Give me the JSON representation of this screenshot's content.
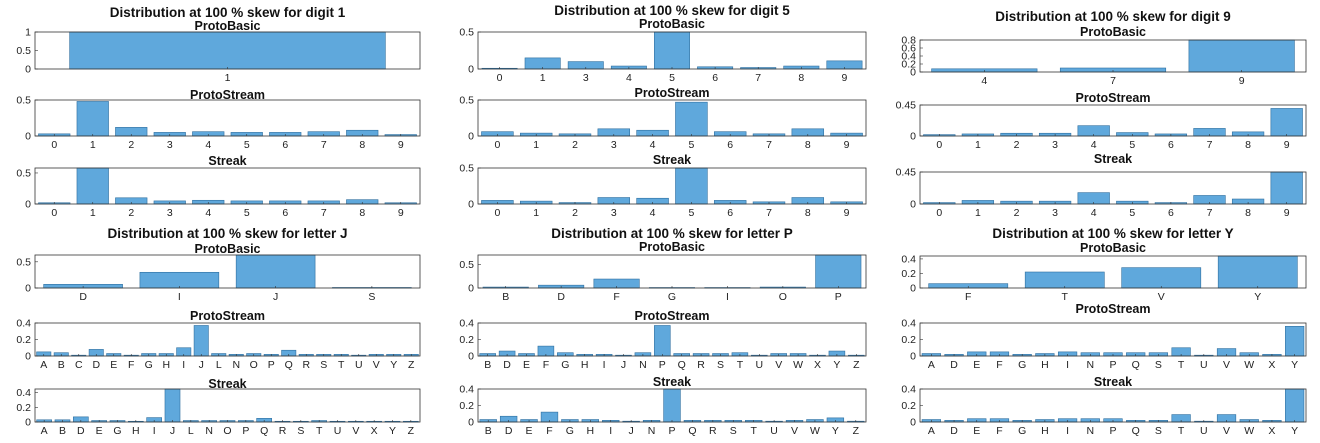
{
  "colors": {
    "bar": "#5fa8dc",
    "bar_edge": "#2f6f9f",
    "axis": "#333333"
  },
  "chart_data": [
    {
      "type": "bar",
      "group_title": "Distribution at 100 % skew for digit 1",
      "title": "ProtoBasic",
      "categories": [
        "1"
      ],
      "values": [
        1.0
      ],
      "ylim": [
        0,
        1
      ],
      "yticks": [
        "0",
        "0.5",
        "1"
      ]
    },
    {
      "type": "bar",
      "group_title": "",
      "title": "ProtoStream",
      "categories": [
        "0",
        "1",
        "2",
        "3",
        "4",
        "5",
        "6",
        "7",
        "8",
        "9"
      ],
      "values": [
        0.03,
        0.48,
        0.12,
        0.05,
        0.06,
        0.05,
        0.05,
        0.06,
        0.08,
        0.02
      ],
      "ylim": [
        0,
        0.5
      ],
      "yticks": [
        "0",
        "0.5"
      ]
    },
    {
      "type": "bar",
      "group_title": "",
      "title": "Streak",
      "categories": [
        "0",
        "1",
        "2",
        "3",
        "4",
        "5",
        "6",
        "7",
        "8",
        "9"
      ],
      "values": [
        0.02,
        0.58,
        0.1,
        0.05,
        0.06,
        0.05,
        0.05,
        0.05,
        0.07,
        0.02
      ],
      "ylim": [
        0,
        0.58
      ],
      "yticks": [
        "0",
        "0.5"
      ]
    },
    {
      "type": "bar",
      "group_title": "Distribution at 100 % skew for digit 5",
      "title": "ProtoBasic",
      "categories": [
        "0",
        "1",
        "3",
        "4",
        "5",
        "6",
        "7",
        "8",
        "9"
      ],
      "values": [
        0.01,
        0.15,
        0.1,
        0.04,
        0.5,
        0.03,
        0.02,
        0.04,
        0.11
      ],
      "ylim": [
        0,
        0.5
      ],
      "yticks": [
        "0",
        "0.5"
      ]
    },
    {
      "type": "bar",
      "group_title": "",
      "title": "ProtoStream",
      "categories": [
        "0",
        "1",
        "2",
        "3",
        "4",
        "5",
        "6",
        "7",
        "8",
        "9"
      ],
      "values": [
        0.06,
        0.04,
        0.03,
        0.1,
        0.08,
        0.47,
        0.06,
        0.03,
        0.1,
        0.04
      ],
      "ylim": [
        0,
        0.5
      ],
      "yticks": [
        "0",
        "0.5"
      ]
    },
    {
      "type": "bar",
      "group_title": "",
      "title": "Streak",
      "categories": [
        "0",
        "1",
        "2",
        "3",
        "4",
        "5",
        "6",
        "7",
        "8",
        "9"
      ],
      "values": [
        0.05,
        0.04,
        0.02,
        0.09,
        0.08,
        0.5,
        0.05,
        0.03,
        0.09,
        0.03
      ],
      "ylim": [
        0,
        0.5
      ],
      "yticks": [
        "0",
        "0.5"
      ]
    },
    {
      "type": "bar",
      "group_title": "Distribution at 100 % skew for digit 9",
      "title": "ProtoBasic",
      "categories": [
        "4",
        "7",
        "9"
      ],
      "values": [
        0.08,
        0.1,
        0.8
      ],
      "ylim": [
        0,
        0.8
      ],
      "yticks": [
        "0",
        "0.2",
        "0.4",
        "0.6",
        "0.8"
      ]
    },
    {
      "type": "bar",
      "group_title": "",
      "title": "ProtoStream",
      "categories": [
        "0",
        "1",
        "2",
        "3",
        "4",
        "5",
        "6",
        "7",
        "8",
        "9"
      ],
      "values": [
        0.02,
        0.03,
        0.04,
        0.04,
        0.15,
        0.05,
        0.03,
        0.11,
        0.06,
        0.4
      ],
      "ylim": [
        0,
        0.45
      ],
      "yticks": [
        "0",
        "0.45"
      ]
    },
    {
      "type": "bar",
      "group_title": "",
      "title": "Streak",
      "categories": [
        "0",
        "1",
        "2",
        "3",
        "4",
        "5",
        "6",
        "7",
        "8",
        "9"
      ],
      "values": [
        0.02,
        0.05,
        0.04,
        0.04,
        0.16,
        0.04,
        0.02,
        0.12,
        0.07,
        0.45
      ],
      "ylim": [
        0,
        0.45
      ],
      "yticks": [
        "0",
        "0.45"
      ]
    },
    {
      "type": "bar",
      "group_title": "Distribution at 100 % skew for letter J",
      "title": "ProtoBasic",
      "categories": [
        "D",
        "I",
        "J",
        "S"
      ],
      "values": [
        0.07,
        0.3,
        0.63,
        0.01
      ],
      "ylim": [
        0,
        0.63
      ],
      "yticks": [
        "0",
        "0.5"
      ]
    },
    {
      "type": "bar",
      "group_title": "",
      "title": "ProtoStream",
      "categories": [
        "A",
        "B",
        "C",
        "D",
        "E",
        "F",
        "G",
        "H",
        "I",
        "J",
        "L",
        "N",
        "O",
        "P",
        "Q",
        "R",
        "S",
        "T",
        "U",
        "V",
        "Y",
        "Z"
      ],
      "values": [
        0.05,
        0.04,
        0.01,
        0.08,
        0.03,
        0.01,
        0.03,
        0.03,
        0.1,
        0.37,
        0.03,
        0.02,
        0.03,
        0.02,
        0.07,
        0.02,
        0.02,
        0.02,
        0.01,
        0.02,
        0.02,
        0.02
      ],
      "ylim": [
        0,
        0.4
      ],
      "yticks": [
        "0",
        "0.2",
        "0.4"
      ]
    },
    {
      "type": "bar",
      "group_title": "",
      "title": "Streak",
      "categories": [
        "A",
        "B",
        "D",
        "E",
        "G",
        "H",
        "I",
        "J",
        "L",
        "N",
        "O",
        "P",
        "Q",
        "R",
        "S",
        "T",
        "U",
        "V",
        "X",
        "Y",
        "Z"
      ],
      "values": [
        0.03,
        0.03,
        0.07,
        0.02,
        0.02,
        0.01,
        0.06,
        0.45,
        0.02,
        0.02,
        0.02,
        0.02,
        0.05,
        0.01,
        0.01,
        0.02,
        0.01,
        0.01,
        0.01,
        0.01,
        0.01
      ],
      "ylim": [
        0,
        0.45
      ],
      "yticks": [
        "0",
        "0.2",
        "0.4"
      ]
    },
    {
      "type": "bar",
      "group_title": "Distribution at 100 % skew for letter P",
      "title": "ProtoBasic",
      "categories": [
        "B",
        "D",
        "F",
        "G",
        "I",
        "O",
        "P"
      ],
      "values": [
        0.02,
        0.06,
        0.19,
        0.01,
        0.01,
        0.02,
        0.7
      ],
      "ylim": [
        0,
        0.7
      ],
      "yticks": [
        "0",
        "0.5"
      ]
    },
    {
      "type": "bar",
      "group_title": "",
      "title": "ProtoStream",
      "categories": [
        "B",
        "D",
        "E",
        "F",
        "G",
        "H",
        "I",
        "J",
        "N",
        "P",
        "Q",
        "R",
        "S",
        "T",
        "U",
        "V",
        "W",
        "X",
        "Y",
        "Z"
      ],
      "values": [
        0.03,
        0.06,
        0.03,
        0.12,
        0.04,
        0.02,
        0.02,
        0.01,
        0.04,
        0.37,
        0.03,
        0.03,
        0.03,
        0.04,
        0.01,
        0.03,
        0.03,
        0.01,
        0.06,
        0.01
      ],
      "ylim": [
        0,
        0.4
      ],
      "yticks": [
        "0",
        "0.2",
        "0.4"
      ]
    },
    {
      "type": "bar",
      "group_title": "",
      "title": "Streak",
      "categories": [
        "B",
        "D",
        "E",
        "F",
        "G",
        "H",
        "I",
        "J",
        "N",
        "P",
        "Q",
        "R",
        "S",
        "T",
        "U",
        "V",
        "W",
        "Y",
        "Z"
      ],
      "values": [
        0.03,
        0.07,
        0.03,
        0.12,
        0.03,
        0.03,
        0.02,
        0.01,
        0.02,
        0.4,
        0.02,
        0.02,
        0.02,
        0.02,
        0.01,
        0.02,
        0.03,
        0.05,
        0.01
      ],
      "ylim": [
        0,
        0.4
      ],
      "yticks": [
        "0",
        "0.2",
        "0.4"
      ]
    },
    {
      "type": "bar",
      "group_title": "Distribution at 100 % skew for letter Y",
      "title": "ProtoBasic",
      "categories": [
        "F",
        "T",
        "V",
        "Y"
      ],
      "values": [
        0.06,
        0.22,
        0.28,
        0.44
      ],
      "ylim": [
        0,
        0.44
      ],
      "yticks": [
        "0",
        "0.2",
        "0.4"
      ]
    },
    {
      "type": "bar",
      "group_title": "",
      "title": "ProtoStream",
      "categories": [
        "A",
        "D",
        "E",
        "F",
        "G",
        "H",
        "I",
        "N",
        "P",
        "Q",
        "S",
        "T",
        "U",
        "V",
        "W",
        "X",
        "Y"
      ],
      "values": [
        0.03,
        0.02,
        0.05,
        0.05,
        0.02,
        0.03,
        0.05,
        0.04,
        0.04,
        0.04,
        0.04,
        0.1,
        0.01,
        0.09,
        0.04,
        0.02,
        0.36
      ],
      "ylim": [
        0,
        0.4
      ],
      "yticks": [
        "0",
        "0.2",
        "0.4"
      ]
    },
    {
      "type": "bar",
      "group_title": "",
      "title": "Streak",
      "categories": [
        "A",
        "D",
        "E",
        "F",
        "G",
        "H",
        "I",
        "N",
        "P",
        "Q",
        "S",
        "T",
        "U",
        "V",
        "W",
        "X",
        "Y"
      ],
      "values": [
        0.03,
        0.02,
        0.04,
        0.04,
        0.02,
        0.03,
        0.04,
        0.04,
        0.04,
        0.02,
        0.02,
        0.09,
        0.01,
        0.09,
        0.03,
        0.02,
        0.4
      ],
      "ylim": [
        0,
        0.4
      ],
      "yticks": [
        "0",
        "0.2",
        "0.4"
      ]
    }
  ]
}
